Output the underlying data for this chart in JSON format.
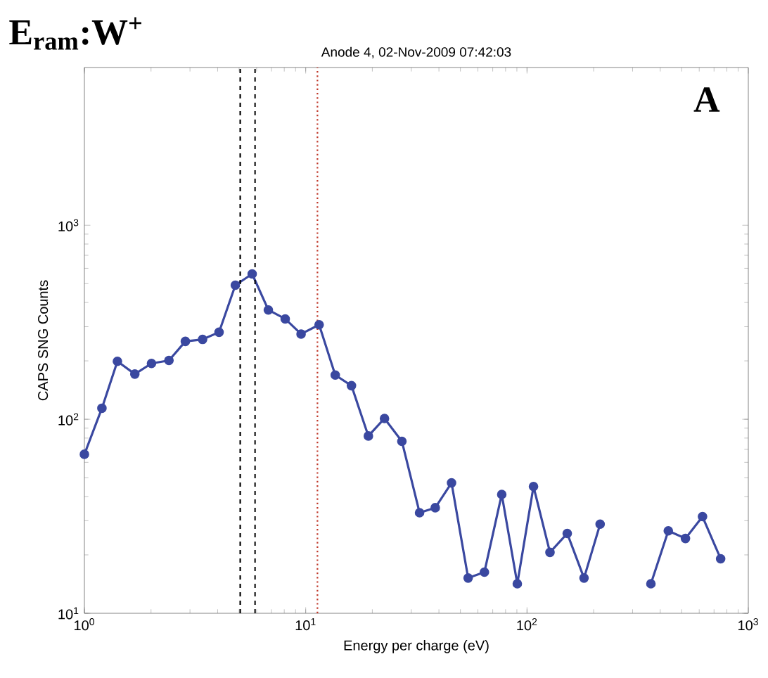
{
  "chart_data": {
    "type": "line",
    "title": "Anode 4, 02-Nov-2009 07:42:03",
    "xlabel": "Energy per charge (eV)",
    "ylabel": "CAPS SNG Counts",
    "annotations": [
      "E$_{ram}$:W$^{+}$",
      "A"
    ],
    "log": "xy",
    "marker": "circle",
    "line_style": "solid",
    "xlim": [
      1,
      1000
    ],
    "ylim": [
      10,
      6500
    ],
    "xticks": [
      {
        "value": 1,
        "label": "10$^{0}$"
      },
      {
        "value": 10,
        "label": "10$^{1}$"
      },
      {
        "value": 100,
        "label": "10$^{2}$"
      },
      {
        "value": 1000,
        "label": "10$^{3}$"
      }
    ],
    "yticks": [
      {
        "value": 10,
        "label": "10$^{1}$"
      },
      {
        "value": 100,
        "label": "10$^{2}$"
      },
      {
        "value": 1000,
        "label": "10$^{3}$"
      }
    ],
    "x": [
      1.0,
      1.2,
      1.41,
      1.69,
      2.01,
      2.41,
      2.86,
      3.42,
      4.06,
      4.81,
      5.73,
      6.78,
      8.08,
      9.53,
      11.5,
      13.6,
      16.1,
      19.2,
      22.7,
      27.2,
      32.7,
      38.5,
      45.6,
      54.2,
      64.2,
      76.9,
      90.4,
      107,
      127,
      152,
      181,
      214,
      248,
      301,
      363,
      435,
      520,
      621,
      750
    ],
    "series": [
      {
        "color": "#3a48a0",
        "values": [
          66,
          114,
          199,
          171,
          194,
          201,
          252,
          258,
          281,
          491,
          561,
          366,
          329,
          275,
          307,
          169,
          149,
          82,
          101,
          77,
          33,
          35,
          47,
          15.2,
          16.3,
          41,
          14.2,
          45,
          20.6,
          25.8,
          15.2,
          28.8,
          null,
          null,
          14.2,
          26.6,
          24.3,
          31.5,
          19.1
        ]
      }
    ],
    "ref_lines": [
      {
        "axis": "x",
        "value": 5.06,
        "color": "#000000",
        "line_style": "dashed"
      },
      {
        "axis": "x",
        "value": 5.9,
        "color": "#000000",
        "line_style": "dashed"
      },
      {
        "axis": "x",
        "value": 11.3,
        "color": "#c0392b",
        "line_style": "dotted"
      }
    ]
  }
}
